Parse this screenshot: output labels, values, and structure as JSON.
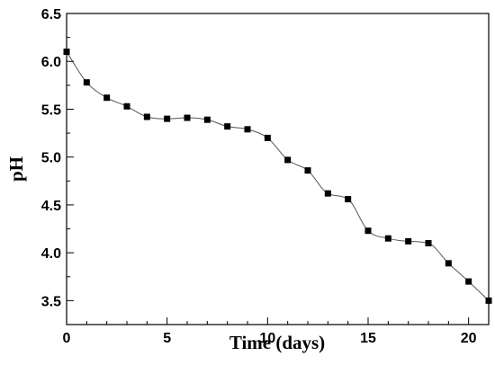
{
  "chart_data": {
    "type": "line",
    "title": "",
    "xlabel": "Time (days)",
    "ylabel": "pH",
    "xlim": [
      0,
      21
    ],
    "ylim": [
      3.25,
      6.5
    ],
    "x_ticks": [
      0,
      5,
      10,
      15,
      20
    ],
    "x_tick_labels": [
      "0",
      "5",
      "10",
      "15",
      "20"
    ],
    "y_ticks": [
      3.5,
      4.0,
      4.5,
      5.0,
      5.5,
      6.0,
      6.5
    ],
    "y_tick_labels": [
      "3.5",
      "4.0",
      "4.5",
      "5.0",
      "5.5",
      "6.0",
      "6.5"
    ],
    "grid": false,
    "legend": "none",
    "marker": "square",
    "line_style": "thin smooth line",
    "colors": {
      "marker": "#000000",
      "line": "#555555",
      "axes": "#000000"
    },
    "series": [
      {
        "x": [
          0,
          1,
          2,
          3,
          4,
          5,
          6,
          7,
          8,
          9,
          10,
          11,
          12,
          13,
          14,
          15,
          16,
          17,
          18,
          19,
          20,
          21
        ],
        "y": [
          6.1,
          5.78,
          5.62,
          5.53,
          5.42,
          5.4,
          5.41,
          5.39,
          5.32,
          5.29,
          5.2,
          4.97,
          4.86,
          4.62,
          4.56,
          4.23,
          4.15,
          4.12,
          4.1,
          3.89,
          3.7,
          3.5
        ]
      }
    ]
  }
}
